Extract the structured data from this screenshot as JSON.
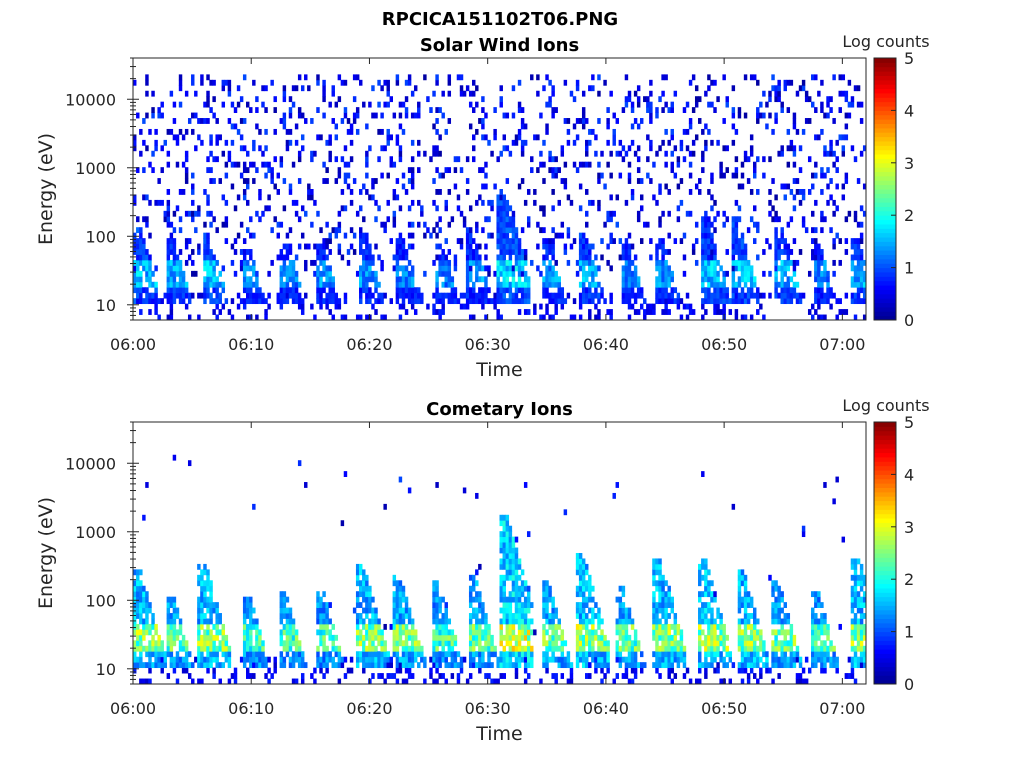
{
  "figure_title": "RPCICA151102T06.PNG",
  "colormap": [
    "#00008f",
    "#0000ff",
    "#0080ff",
    "#00ffff",
    "#80ff80",
    "#ffff00",
    "#ff8000",
    "#ff0000",
    "#800000"
  ],
  "chart_data": [
    {
      "type": "heatmap",
      "title": "Solar Wind Ions",
      "xlabel": "Time",
      "ylabel": "Energy (eV)",
      "colorbar_label": "Log counts",
      "colorbar_ticks": [
        "0",
        "1",
        "2",
        "3",
        "4",
        "5"
      ],
      "clim": [
        0,
        5
      ],
      "xlim": [
        "06:00",
        "07:02"
      ],
      "x_ticks": [
        "06:00",
        "06:10",
        "06:20",
        "06:30",
        "06:40",
        "06:50",
        "07:00"
      ],
      "y_scale": "log",
      "ylim": [
        6,
        40000
      ],
      "y_ticks": [
        "10",
        "100",
        "1000",
        "10000"
      ],
      "scatter_density": 0.16,
      "scatter_max_energy": 25000,
      "bursts": [
        {
          "t": 0.5,
          "peak": 130,
          "level": 1.6
        },
        {
          "t": 3.3,
          "peak": 95,
          "level": 1.5
        },
        {
          "t": 6.3,
          "peak": 120,
          "level": 1.6
        },
        {
          "t": 9.8,
          "peak": 70,
          "level": 1.3
        },
        {
          "t": 13.0,
          "peak": 85,
          "level": 1.3
        },
        {
          "t": 16.0,
          "peak": 80,
          "level": 1.4
        },
        {
          "t": 19.5,
          "peak": 110,
          "level": 1.4
        },
        {
          "t": 22.8,
          "peak": 90,
          "level": 1.3
        },
        {
          "t": 26.0,
          "peak": 80,
          "level": 1.3
        },
        {
          "t": 28.7,
          "peak": 110,
          "level": 1.4
        },
        {
          "t": 31.3,
          "peak": 500,
          "level": 1.7
        },
        {
          "t": 35.0,
          "peak": 90,
          "level": 1.4
        },
        {
          "t": 38.2,
          "peak": 120,
          "level": 1.5
        },
        {
          "t": 41.8,
          "peak": 80,
          "level": 1.3
        },
        {
          "t": 44.6,
          "peak": 100,
          "level": 1.4
        },
        {
          "t": 48.5,
          "peak": 180,
          "level": 1.6
        },
        {
          "t": 51.0,
          "peak": 200,
          "level": 1.6
        },
        {
          "t": 54.8,
          "peak": 130,
          "level": 1.5
        },
        {
          "t": 58.0,
          "peak": 80,
          "level": 1.3
        },
        {
          "t": 61.2,
          "peak": 100,
          "level": 1.5
        }
      ]
    },
    {
      "type": "heatmap",
      "title": "Cometary Ions",
      "xlabel": "Time",
      "ylabel": "Energy (eV)",
      "colorbar_label": "Log counts",
      "colorbar_ticks": [
        "0",
        "1",
        "2",
        "3",
        "4",
        "5"
      ],
      "clim": [
        0,
        5
      ],
      "xlim": [
        "06:00",
        "07:02"
      ],
      "x_ticks": [
        "06:00",
        "06:10",
        "06:20",
        "06:30",
        "06:40",
        "06:50",
        "07:00"
      ],
      "y_scale": "log",
      "ylim": [
        6,
        40000
      ],
      "y_ticks": [
        "10",
        "100",
        "1000",
        "10000"
      ],
      "scatter_density": 0.006,
      "scatter_max_energy": 15000,
      "bursts": [
        {
          "t": 0.5,
          "peak": 300,
          "level": 2.6
        },
        {
          "t": 3.3,
          "peak": 120,
          "level": 2.4
        },
        {
          "t": 6.0,
          "peak": 350,
          "level": 2.6
        },
        {
          "t": 9.8,
          "peak": 120,
          "level": 2.3
        },
        {
          "t": 12.8,
          "peak": 130,
          "level": 2.3
        },
        {
          "t": 16.0,
          "peak": 140,
          "level": 2.3
        },
        {
          "t": 19.3,
          "peak": 350,
          "level": 2.6
        },
        {
          "t": 22.5,
          "peak": 240,
          "level": 2.5
        },
        {
          "t": 25.8,
          "peak": 180,
          "level": 2.3
        },
        {
          "t": 28.8,
          "peak": 220,
          "level": 2.4
        },
        {
          "t": 31.5,
          "peak": 1800,
          "level": 2.9
        },
        {
          "t": 35.0,
          "peak": 180,
          "level": 2.5
        },
        {
          "t": 38.0,
          "peak": 450,
          "level": 2.7
        },
        {
          "t": 41.3,
          "peak": 170,
          "level": 2.4
        },
        {
          "t": 44.5,
          "peak": 400,
          "level": 2.6
        },
        {
          "t": 48.3,
          "peak": 380,
          "level": 2.7
        },
        {
          "t": 51.5,
          "peak": 300,
          "level": 2.6
        },
        {
          "t": 54.5,
          "peak": 180,
          "level": 2.5
        },
        {
          "t": 57.8,
          "peak": 140,
          "level": 2.3
        },
        {
          "t": 61.3,
          "peak": 400,
          "level": 2.6
        }
      ]
    }
  ]
}
